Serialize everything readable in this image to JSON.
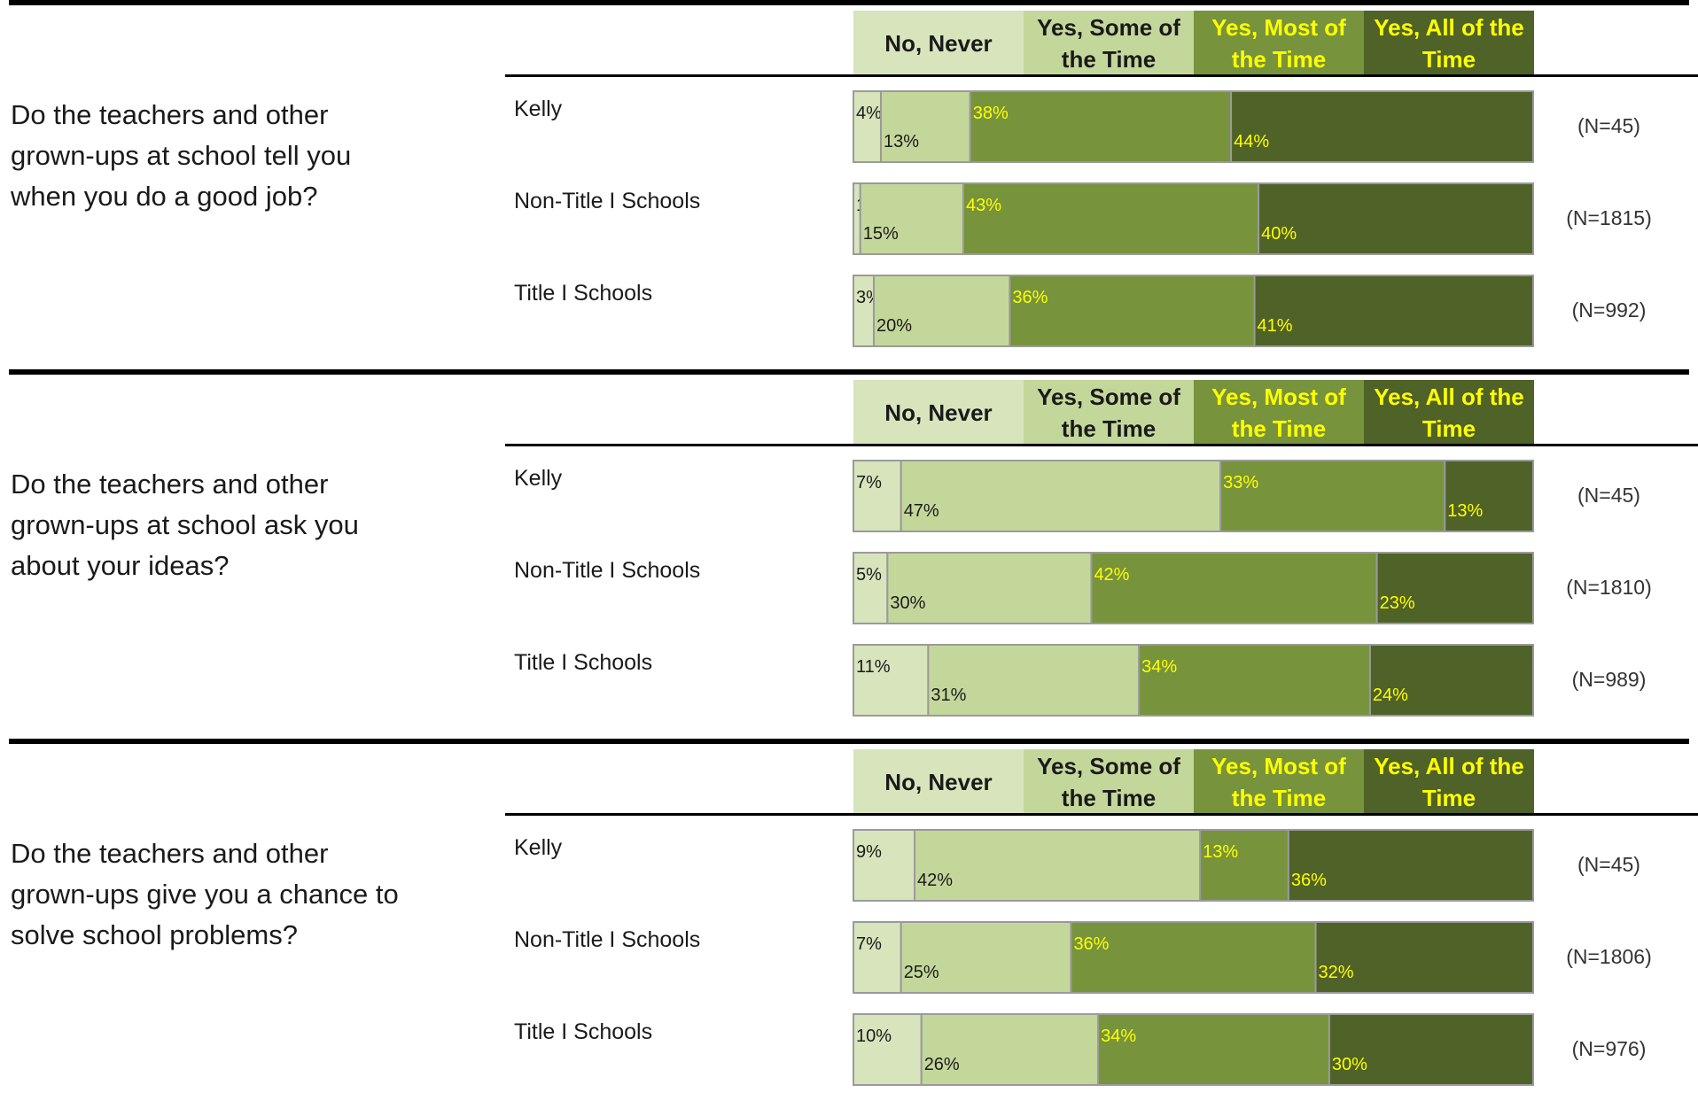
{
  "legend": [
    "No, Never",
    "Yes, Some of the Time",
    "Yes, Most of the Time",
    "Yes, All of the Time"
  ],
  "colors": {
    "no_never": "#d8e4bc",
    "some_of_time": "#c4d79b",
    "most_of_time": "#77933c",
    "all_of_time": "#4f6228",
    "label_dark": "#1a1a1a",
    "label_yellow": "#ffff00"
  },
  "chart_data": {
    "type": "bar",
    "stacked": true,
    "orientation": "horizontal",
    "series_names": [
      "No, Never",
      "Yes, Some of the Time",
      "Yes, Most of the Time",
      "Yes, All of the Time"
    ],
    "questions": [
      {
        "text": "Do the teachers and other grown-ups at school tell you when you do a good job?",
        "rows": [
          {
            "label": "Kelly",
            "n": "(N=45)",
            "values": [
              4,
              13,
              38,
              44
            ]
          },
          {
            "label": "Non-Title I Schools",
            "n": "(N=1815)",
            "values": [
              1,
              15,
              43,
              40
            ]
          },
          {
            "label": "Title I Schools",
            "n": "(N=992)",
            "values": [
              3,
              20,
              36,
              41
            ]
          }
        ]
      },
      {
        "text": "Do the teachers and other grown-ups at school ask you about your ideas?",
        "rows": [
          {
            "label": "Kelly",
            "n": "(N=45)",
            "values": [
              7,
              47,
              33,
              13
            ]
          },
          {
            "label": "Non-Title I Schools",
            "n": "(N=1810)",
            "values": [
              5,
              30,
              42,
              23
            ]
          },
          {
            "label": "Title I Schools",
            "n": "(N=989)",
            "values": [
              11,
              31,
              34,
              24
            ]
          }
        ]
      },
      {
        "text": "Do the teachers and other grown-ups give you a chance to solve school problems?",
        "rows": [
          {
            "label": "Kelly",
            "n": "(N=45)",
            "values": [
              9,
              42,
              13,
              36
            ]
          },
          {
            "label": "Non-Title I Schools",
            "n": "(N=1806)",
            "values": [
              7,
              25,
              36,
              32
            ]
          },
          {
            "label": "Title I Schools",
            "n": "(N=976)",
            "values": [
              10,
              26,
              34,
              30
            ]
          }
        ]
      }
    ]
  }
}
